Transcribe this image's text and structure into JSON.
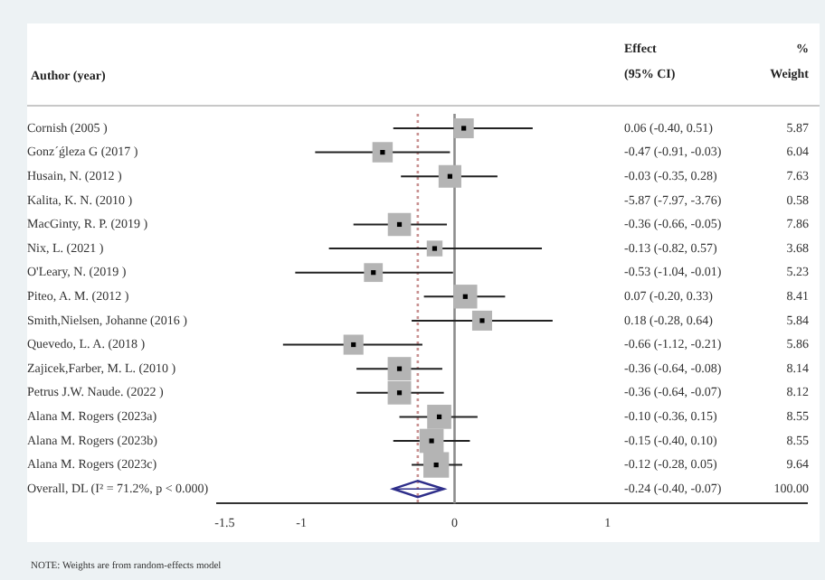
{
  "chart_data": {
    "type": "scatter",
    "orientation": "horizontal",
    "ylabel": "Author (year)",
    "categories": [
      "Cornish (2005 )",
      "Gonz´ǵleza G (2017 )",
      "Husain, N. (2012 )",
      "Kalita, K. N. (2010 )",
      "MacGinty, R. P. (2019 )",
      "Nix, L. (2021 )",
      "O'Leary, N. (2019 )",
      "Piteo, A. M. (2012 )",
      "Smith,Nielsen, Johanne (2016 )",
      "Quevedo, L. A. (2018 )",
      "Zajicek,Farber, M. L. (2010 )",
      "Petrus J.W. Naude. (2022 )",
      "Alana M. Rogers (2023a)",
      "Alana M. Rogers (2023b)",
      "Alana M. Rogers (2023c)",
      "Overall, DL (I² = 71.2%, p < 0.000)"
    ],
    "series": [
      {
        "type": "bubble",
        "marker": "square",
        "color": "#b4b4b4",
        "values": [
          0.06,
          -0.47,
          -0.03,
          null,
          -0.36,
          -0.13,
          -0.53,
          0.07,
          0.18,
          -0.66,
          -0.36,
          -0.36,
          -0.1,
          -0.15,
          -0.12,
          null
        ],
        "errors": [
          [
            -0.4,
            0.51
          ],
          [
            -0.91,
            -0.03
          ],
          [
            -0.35,
            0.28
          ],
          null,
          [
            -0.66,
            -0.05
          ],
          [
            -0.82,
            0.57
          ],
          [
            -1.04,
            -0.01
          ],
          [
            -0.2,
            0.33
          ],
          [
            -0.28,
            0.64
          ],
          [
            -1.12,
            -0.21
          ],
          [
            -0.64,
            -0.08
          ],
          [
            -0.64,
            -0.07
          ],
          [
            -0.36,
            0.15
          ],
          [
            -0.4,
            0.1
          ],
          [
            -0.28,
            0.05
          ],
          null
        ],
        "sizes": [
          0.61,
          0.63,
          0.79,
          null,
          0.82,
          0.38,
          0.54,
          0.87,
          0.61,
          0.61,
          0.84,
          0.84,
          0.89,
          0.89,
          1,
          null
        ]
      },
      {
        "type": "scatter",
        "marker": "diamond",
        "color": "#2e2e8a",
        "values": [
          null,
          null,
          null,
          null,
          null,
          null,
          null,
          null,
          null,
          null,
          null,
          null,
          null,
          null,
          null,
          -0.24
        ],
        "errors": [
          null,
          null,
          null,
          null,
          null,
          null,
          null,
          null,
          null,
          null,
          null,
          null,
          null,
          null,
          null,
          [
            -0.4,
            -0.07
          ]
        ]
      }
    ],
    "xlim": [
      -1.55,
      2.3
    ],
    "xticks": [
      -1.5,
      -1,
      0,
      1
    ],
    "ref_lines": [
      {
        "axis": "x",
        "value": 0,
        "color": "#8c8c8c",
        "line_style": "solid"
      },
      {
        "axis": "x",
        "value": -0.24,
        "color": "#c89090",
        "line_style": "dotted"
      }
    ],
    "annotations": [
      "Effect",
      "(95% CI)",
      "%",
      "Weight",
      "0.06 (-0.40, 0.51)",
      "-0.47 (-0.91, -0.03)",
      "-0.03 (-0.35, 0.28)",
      "-5.87 (-7.97, -3.76)",
      "-0.36 (-0.66, -0.05)",
      "-0.13 (-0.82, 0.57)",
      "-0.53 (-1.04, -0.01)",
      "0.07 (-0.20, 0.33)",
      "0.18 (-0.28, 0.64)",
      "-0.66 (-1.12, -0.21)",
      "-0.36 (-0.64, -0.08)",
      "-0.36 (-0.64, -0.07)",
      "-0.10 (-0.36, 0.15)",
      "-0.15 (-0.40, 0.10)",
      "-0.12 (-0.28, 0.05)",
      "-0.24 (-0.40, -0.07)",
      "5.87",
      "6.04",
      "7.63",
      "0.58",
      "7.86",
      "3.68",
      "5.23",
      "8.41",
      "5.84",
      "5.86",
      "8.14",
      "8.12",
      "8.55",
      "8.55",
      "9.64",
      "100.00",
      "NOTE: Weights are from random-effects model"
    ],
    "grid": false,
    "legend": false
  }
}
